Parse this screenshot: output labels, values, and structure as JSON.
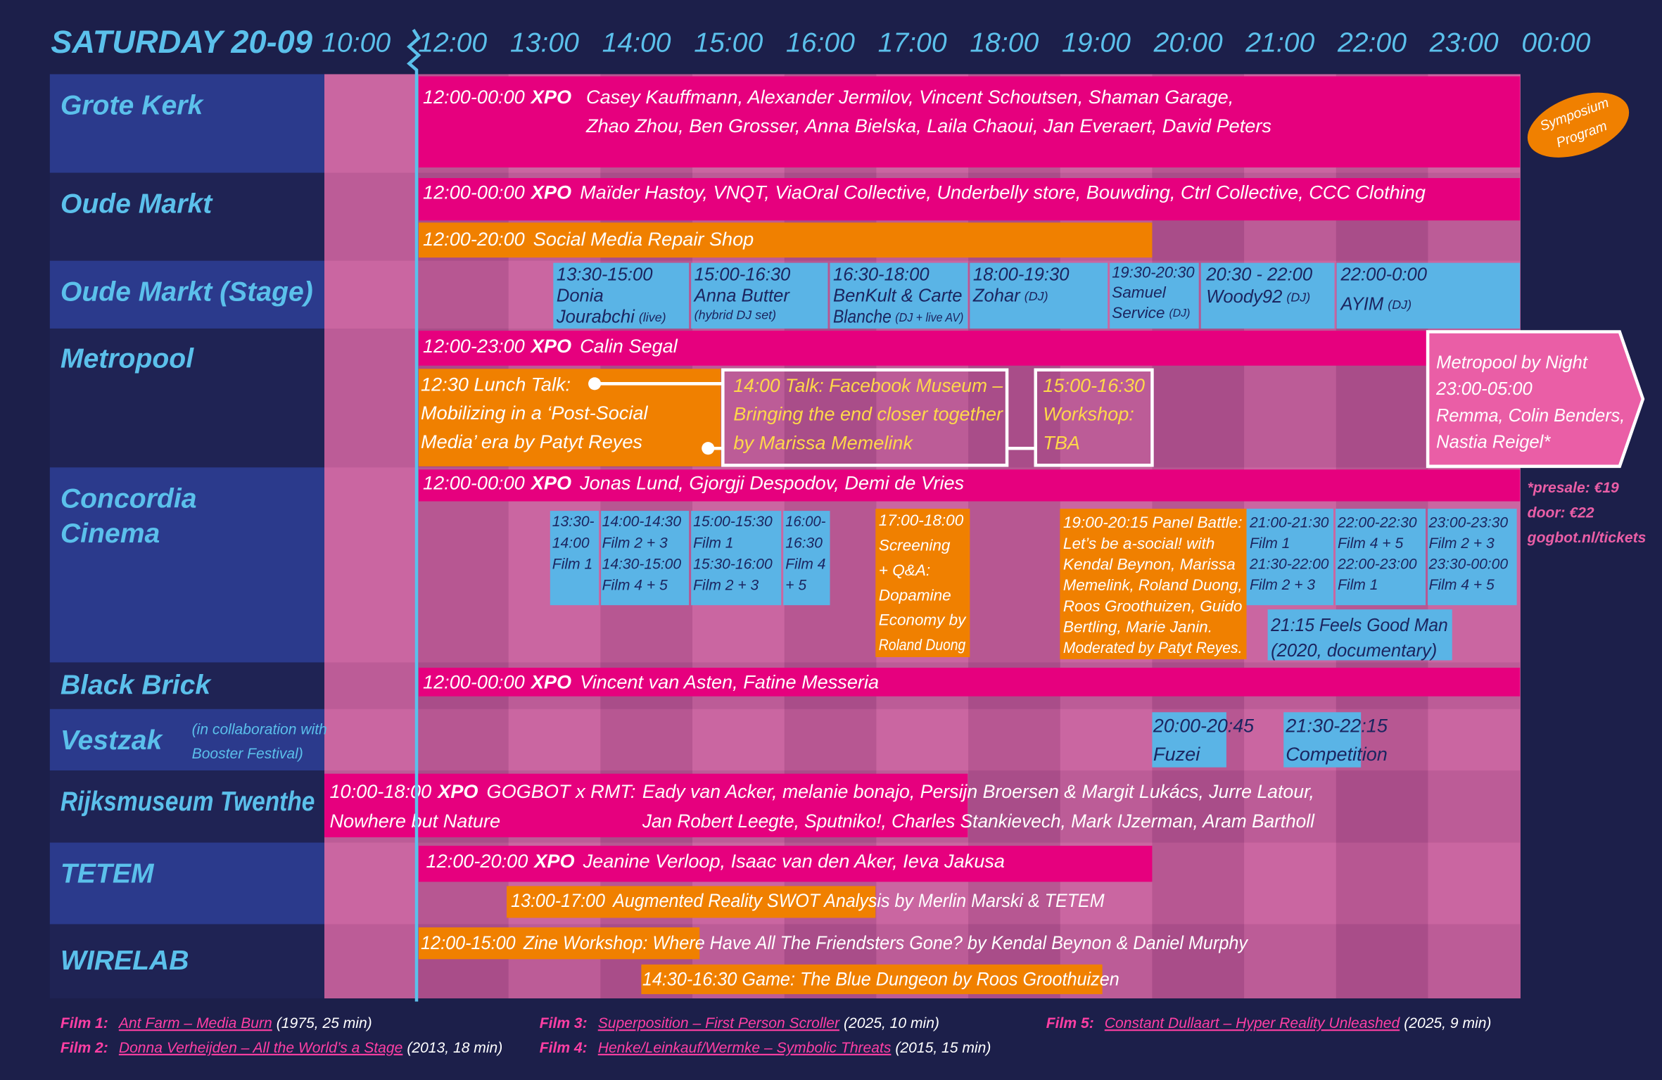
{
  "title": "SATURDAY 20-09",
  "times": [
    "10:00",
    "12:00",
    "13:00",
    "14:00",
    "15:00",
    "16:00",
    "17:00",
    "18:00",
    "19:00",
    "20:00",
    "21:00",
    "22:00",
    "23:00",
    "00:00"
  ],
  "venues": [
    {
      "name": [
        "Grote Kerk"
      ]
    },
    {
      "name": [
        "Oude Markt"
      ]
    },
    {
      "name": [
        "Oude Markt (Stage)"
      ]
    },
    {
      "name": [
        "Metropool"
      ]
    },
    {
      "name": [
        "Concordia",
        "Cinema"
      ]
    },
    {
      "name": [
        "Black Brick"
      ]
    },
    {
      "name": [
        "Vestzak"
      ],
      "note": [
        "(in collaboration with",
        "Booster Festival)"
      ]
    },
    {
      "name": [
        "Rijksmuseum Twenthe"
      ]
    },
    {
      "name": [
        "TETEM"
      ]
    },
    {
      "name": [
        "WIRELAB"
      ]
    }
  ],
  "events": [
    {
      "time": "12:00-00:00",
      "tag": "XPO",
      "lines": [],
      "artists": [
        "Casey Kauffmann, Alexander Jermilov, Vincent Schoutsen, Shaman Garage,",
        "Zhao Zhou, Ben Grosser, Anna Bielska, Laila Chaoui, Jan Everaert, David Peters"
      ]
    },
    {
      "time": "12:00-00:00",
      "tag": "XPO",
      "lines": [
        "Maïder Hastoy, VNQT, ViaOral Collective, Underbelly store, Bouwding, Ctrl Collective, CCC Clothing"
      ]
    },
    {
      "time": "12:00-20:00",
      "lines": [
        "Social Media Repair Shop"
      ]
    },
    {
      "time": "13:30-15:00",
      "lines": [
        "Donia",
        "Jourabchi"
      ],
      "note": "(live)"
    },
    {
      "time": "15:00-16:30",
      "lines": [
        "Anna Butter"
      ],
      "note": "(hybrid DJ set)"
    },
    {
      "time": "16:30-18:00",
      "lines": [
        "BenKult & Carte",
        "Blanche"
      ],
      "note": "(DJ + live AV)"
    },
    {
      "time": "18:00-19:30",
      "lines": [
        "Zohar"
      ],
      "note": "(DJ)"
    },
    {
      "time": "19:30-20:30",
      "lines": [
        "Samuel",
        "Service"
      ],
      "note": "(DJ)"
    },
    {
      "time": "20:30 - 22:00",
      "lines": [
        "Woody92"
      ],
      "note": "(DJ)"
    },
    {
      "time": "22:00-0:00",
      "lines": [
        "AYIM"
      ],
      "note": "(DJ)"
    },
    {
      "time": "12:00-23:00",
      "tag": "XPO",
      "lines": [
        "Calin Segal"
      ]
    },
    {
      "lines": [
        "12:30 Lunch Talk:",
        "Mobilizing in a ‘Post-Social",
        "Media’ era by Patyt Reyes"
      ]
    },
    {
      "lines": [
        "14:00 Talk: Facebook Museum –",
        "Bringing the end closer together",
        "by Marissa Memelink"
      ]
    },
    {
      "lines": [
        "15:00-16:30",
        "Workshop:",
        "TBA"
      ]
    },
    {
      "lines": [
        "Metropool by Night",
        "23:00-05:00",
        "Remma, Colin Benders,",
        "Nastia Reigel*"
      ]
    },
    {
      "time": "12:00-00:00",
      "tag": "XPO",
      "lines": [
        "Jonas Lund, Gjorgji Despodov, Demi de Vries"
      ]
    },
    {
      "lines": [
        "13:30-",
        "14:00",
        "Film 1"
      ]
    },
    {
      "lines": [
        "14:00-14:30",
        "Film 2 + 3",
        "14:30-15:00",
        "Film 4 + 5"
      ]
    },
    {
      "lines": [
        "15:00-15:30",
        "Film 1",
        "15:30-16:00",
        "Film 2 + 3"
      ]
    },
    {
      "lines": [
        "16:00-",
        "16:30",
        "Film 4",
        "+ 5"
      ]
    },
    {
      "lines": [
        "17:00-18:00",
        "Screening",
        "+ Q&A:",
        "Dopamine",
        "Economy by",
        "Roland Duong"
      ]
    },
    {
      "lines": [
        "19:00-20:15 Panel Battle:",
        "Let’s be a-social! with",
        "Kendal Beynon, Marissa",
        "Memelink, Roland Duong,",
        "Roos Groothuizen, Guido",
        "Bertling, Marie Janin.",
        "Moderated by Patyt Reyes."
      ]
    },
    {
      "lines": [
        "21:00-21:30",
        "Film 1",
        "21:30-22:00",
        "Film 2 + 3"
      ]
    },
    {
      "lines": [
        "22:00-22:30",
        "Film 4 + 5",
        "22:00-23:00",
        "Film 1"
      ]
    },
    {
      "lines": [
        "23:00-23:30",
        "Film 2 + 3",
        "23:30-00:00",
        "Film 4 + 5"
      ]
    },
    {
      "lines": [
        "21:15 Feels Good Man",
        "(2020, documentary)"
      ]
    },
    {
      "time": "12:00-00:00",
      "tag": "XPO",
      "lines": [
        "Vincent van Asten, Fatine Messeria"
      ]
    },
    {
      "time": "20:00-20:45",
      "lines": [
        "Fuzei"
      ]
    },
    {
      "time": "21:30-22:15",
      "lines": [
        "Competition"
      ]
    },
    {
      "time": "10:00-18:00",
      "tag": "XPO",
      "lines": [
        "GOGBOT x RMT:",
        "Nowhere but Nature"
      ],
      "artists": [
        "Eady van Acker, melanie bonajo, Persijn Broersen & Margit Lukács, Jurre Latour,",
        "Jan Robert Leegte, Sputniko!, Charles Stankievech, Mark IJzerman, Aram Bartholl"
      ]
    },
    {
      "time": "12:00-20:00",
      "tag": "XPO",
      "lines": [
        "Jeanine Verloop, Isaac van den Aker, Ieva Jakusa"
      ]
    },
    {
      "time": "13:00-17:00",
      "lines": [
        "Augmented Reality SWOT Analysis by Merlin Marski & TETEM"
      ]
    },
    {
      "time": "12:00-15:00",
      "lines": [
        "Zine Workshop: Where Have All The Friendsters Gone? by Kendal Beynon & Daniel Murphy"
      ]
    },
    {
      "lines": [
        "14:30-16:30 Game: The Blue Dungeon by Roos Groothuizen"
      ]
    }
  ],
  "badge": [
    "Symposium",
    "Program"
  ],
  "tickets": [
    "*presale: €19",
    "door: €22",
    "gogbot.nl/tickets"
  ],
  "footnotes": [
    {
      "label": "Film 1:",
      "title": "Ant Farm – Media Burn",
      "info": "(1975, 25 min)"
    },
    {
      "label": "Film 2:",
      "title": "Donna Verheijden – All the World’s a Stage",
      "info": "(2013, 18 min)"
    },
    {
      "label": "Film 3:",
      "title": "Superposition – First Person Scroller",
      "info": "(2025, 10 min)"
    },
    {
      "label": "Film 4:",
      "title": "Henke/Leinkauf/Wermke – Symbolic Threats",
      "info": "(2015, 15 min)"
    },
    {
      "label": "Film 5:",
      "title": "Constant Dullaart – Hyper Reality Unleashed",
      "info": "(2025, 9 min)"
    }
  ]
}
